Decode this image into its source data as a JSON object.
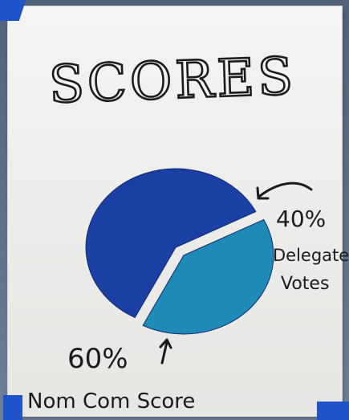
{
  "poster": {
    "title": "SCORES"
  },
  "chart_data": {
    "type": "pie",
    "title": "SCORES",
    "slices": [
      {
        "label_line1": "Nom Com Score",
        "label_line2": "",
        "value": 60,
        "percent_label": "60%",
        "color": "#1a3fa5"
      },
      {
        "label_line1": "Delegate",
        "label_line2": "Votes",
        "value": 40,
        "percent_label": "40%",
        "color": "#1d8ab8"
      }
    ]
  },
  "colors": {
    "paper": "#efefed",
    "marker": "#1b1b1b",
    "tape": "#1f53c9"
  }
}
